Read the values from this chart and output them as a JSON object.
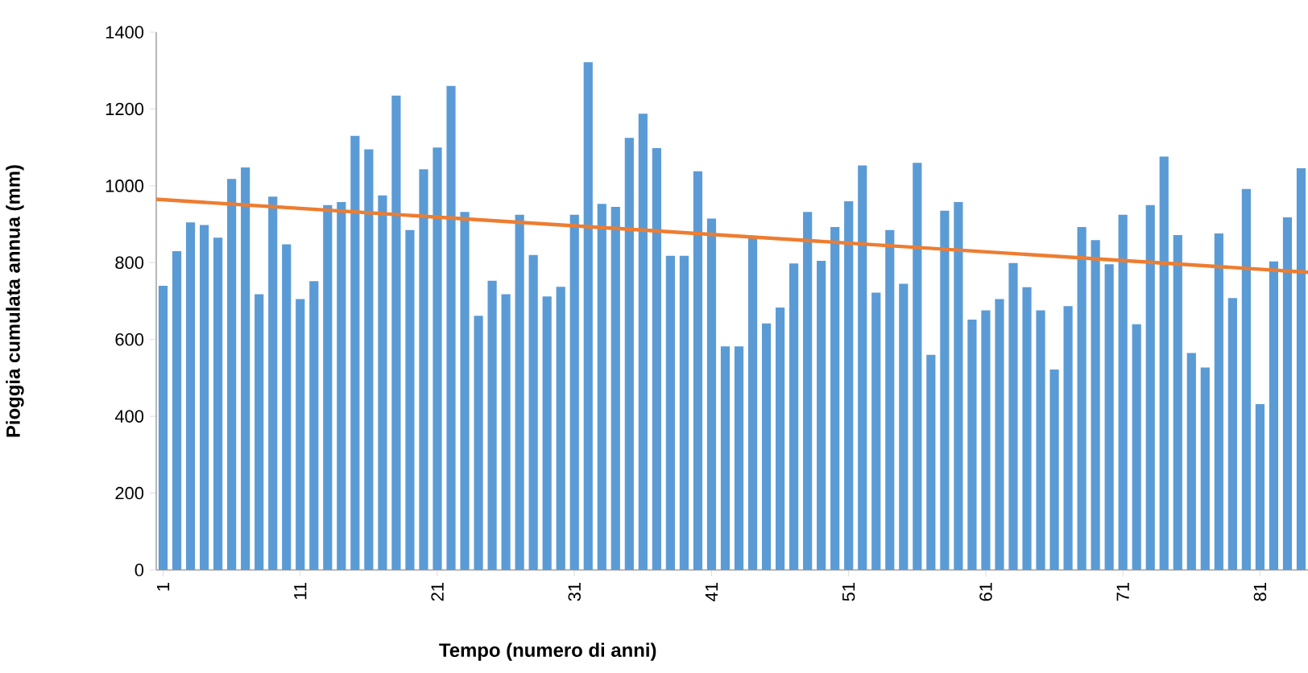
{
  "chart_data": {
    "type": "bar",
    "xlabel": "Tempo (numero di anni)",
    "ylabel": "Pioggia cumulata annua (mm)",
    "x": [
      1,
      2,
      3,
      4,
      5,
      6,
      7,
      8,
      9,
      10,
      11,
      12,
      13,
      14,
      15,
      16,
      17,
      18,
      19,
      20,
      21,
      22,
      23,
      24,
      25,
      26,
      27,
      28,
      29,
      30,
      31,
      32,
      33,
      34,
      35,
      36,
      37,
      38,
      39,
      40,
      41,
      42,
      43,
      44,
      45,
      46,
      47,
      48,
      49,
      50,
      51,
      52,
      53,
      54,
      55,
      56,
      57,
      58,
      59,
      60,
      61,
      62,
      63,
      64,
      65,
      66,
      67,
      68,
      69,
      70,
      71,
      72,
      73,
      74,
      75,
      76,
      77,
      78,
      79,
      80,
      81,
      82,
      83,
      84
    ],
    "series": [
      {
        "color": "#5b9bd5",
        "values": [
          740,
          830,
          905,
          898,
          865,
          1018,
          1048,
          718,
          972,
          848,
          705,
          752,
          950,
          958,
          1130,
          1095,
          975,
          1235,
          885,
          1043,
          1100,
          1260,
          932,
          662,
          753,
          718,
          925,
          820,
          712,
          737,
          925,
          1322,
          953,
          945,
          1125,
          1188,
          1098,
          818,
          818,
          1038,
          915,
          582,
          582,
          870,
          642,
          683,
          798,
          932,
          805,
          893,
          960,
          1053,
          722,
          885,
          745,
          1060,
          560,
          935,
          958,
          652,
          676,
          705,
          799,
          736,
          676,
          522,
          687,
          893,
          859,
          796,
          925,
          640,
          950,
          1076,
          872,
          565,
          527,
          876,
          708,
          992,
          432,
          803,
          918,
          1046
        ]
      },
      {
        "type": "line",
        "color": "#ed7d31",
        "x": [
          0.5,
          84.5
        ],
        "values": [
          965,
          775
        ]
      }
    ],
    "xlim": [
      0.5,
      84.5
    ],
    "xticks": [
      1,
      11,
      21,
      31,
      41,
      51,
      61,
      71,
      81
    ],
    "ylim": [
      0,
      1400
    ],
    "yticks": [
      0,
      200,
      400,
      600,
      800,
      1000,
      1200,
      1400
    ],
    "grid": false
  }
}
